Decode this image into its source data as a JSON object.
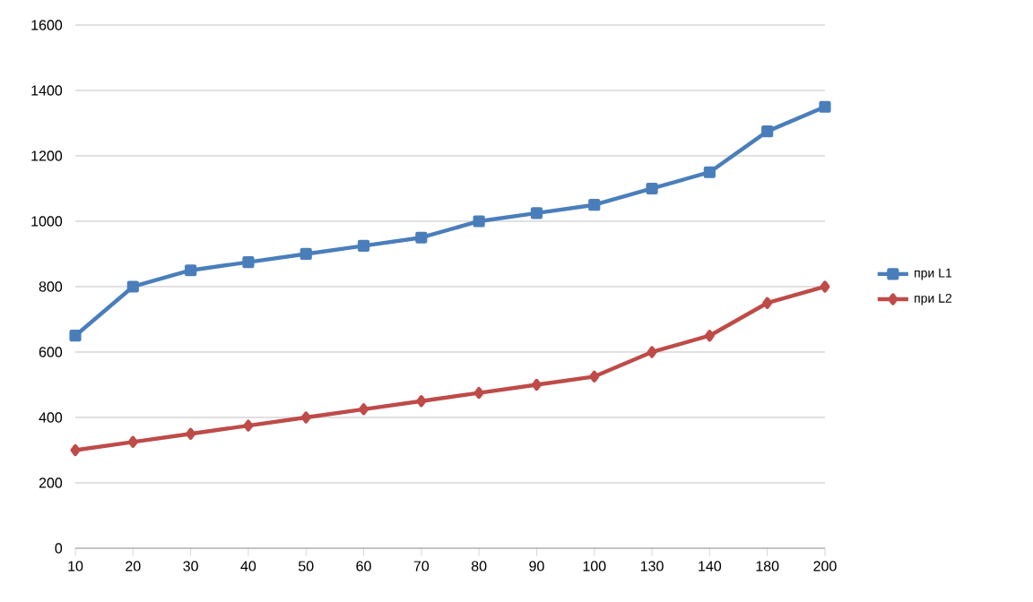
{
  "chart_data": {
    "type": "line",
    "categories": [
      "10",
      "20",
      "30",
      "40",
      "50",
      "60",
      "70",
      "80",
      "90",
      "100",
      "130",
      "140",
      "180",
      "200"
    ],
    "series": [
      {
        "name": "при L1",
        "color": "#4a7ebb",
        "marker": "square",
        "values": [
          650,
          800,
          850,
          875,
          900,
          925,
          950,
          1000,
          1025,
          1050,
          1100,
          1150,
          1275,
          1350
        ]
      },
      {
        "name": "при L2",
        "color": "#be4b48",
        "marker": "diamond",
        "values": [
          300,
          325,
          350,
          375,
          400,
          425,
          450,
          475,
          500,
          525,
          600,
          650,
          750,
          800
        ]
      }
    ],
    "ylim": [
      0,
      1600
    ],
    "yticks": [
      0,
      200,
      400,
      600,
      800,
      1000,
      1200,
      1400,
      1600
    ],
    "grid": "y",
    "legend": "right",
    "line_style": "solid"
  }
}
